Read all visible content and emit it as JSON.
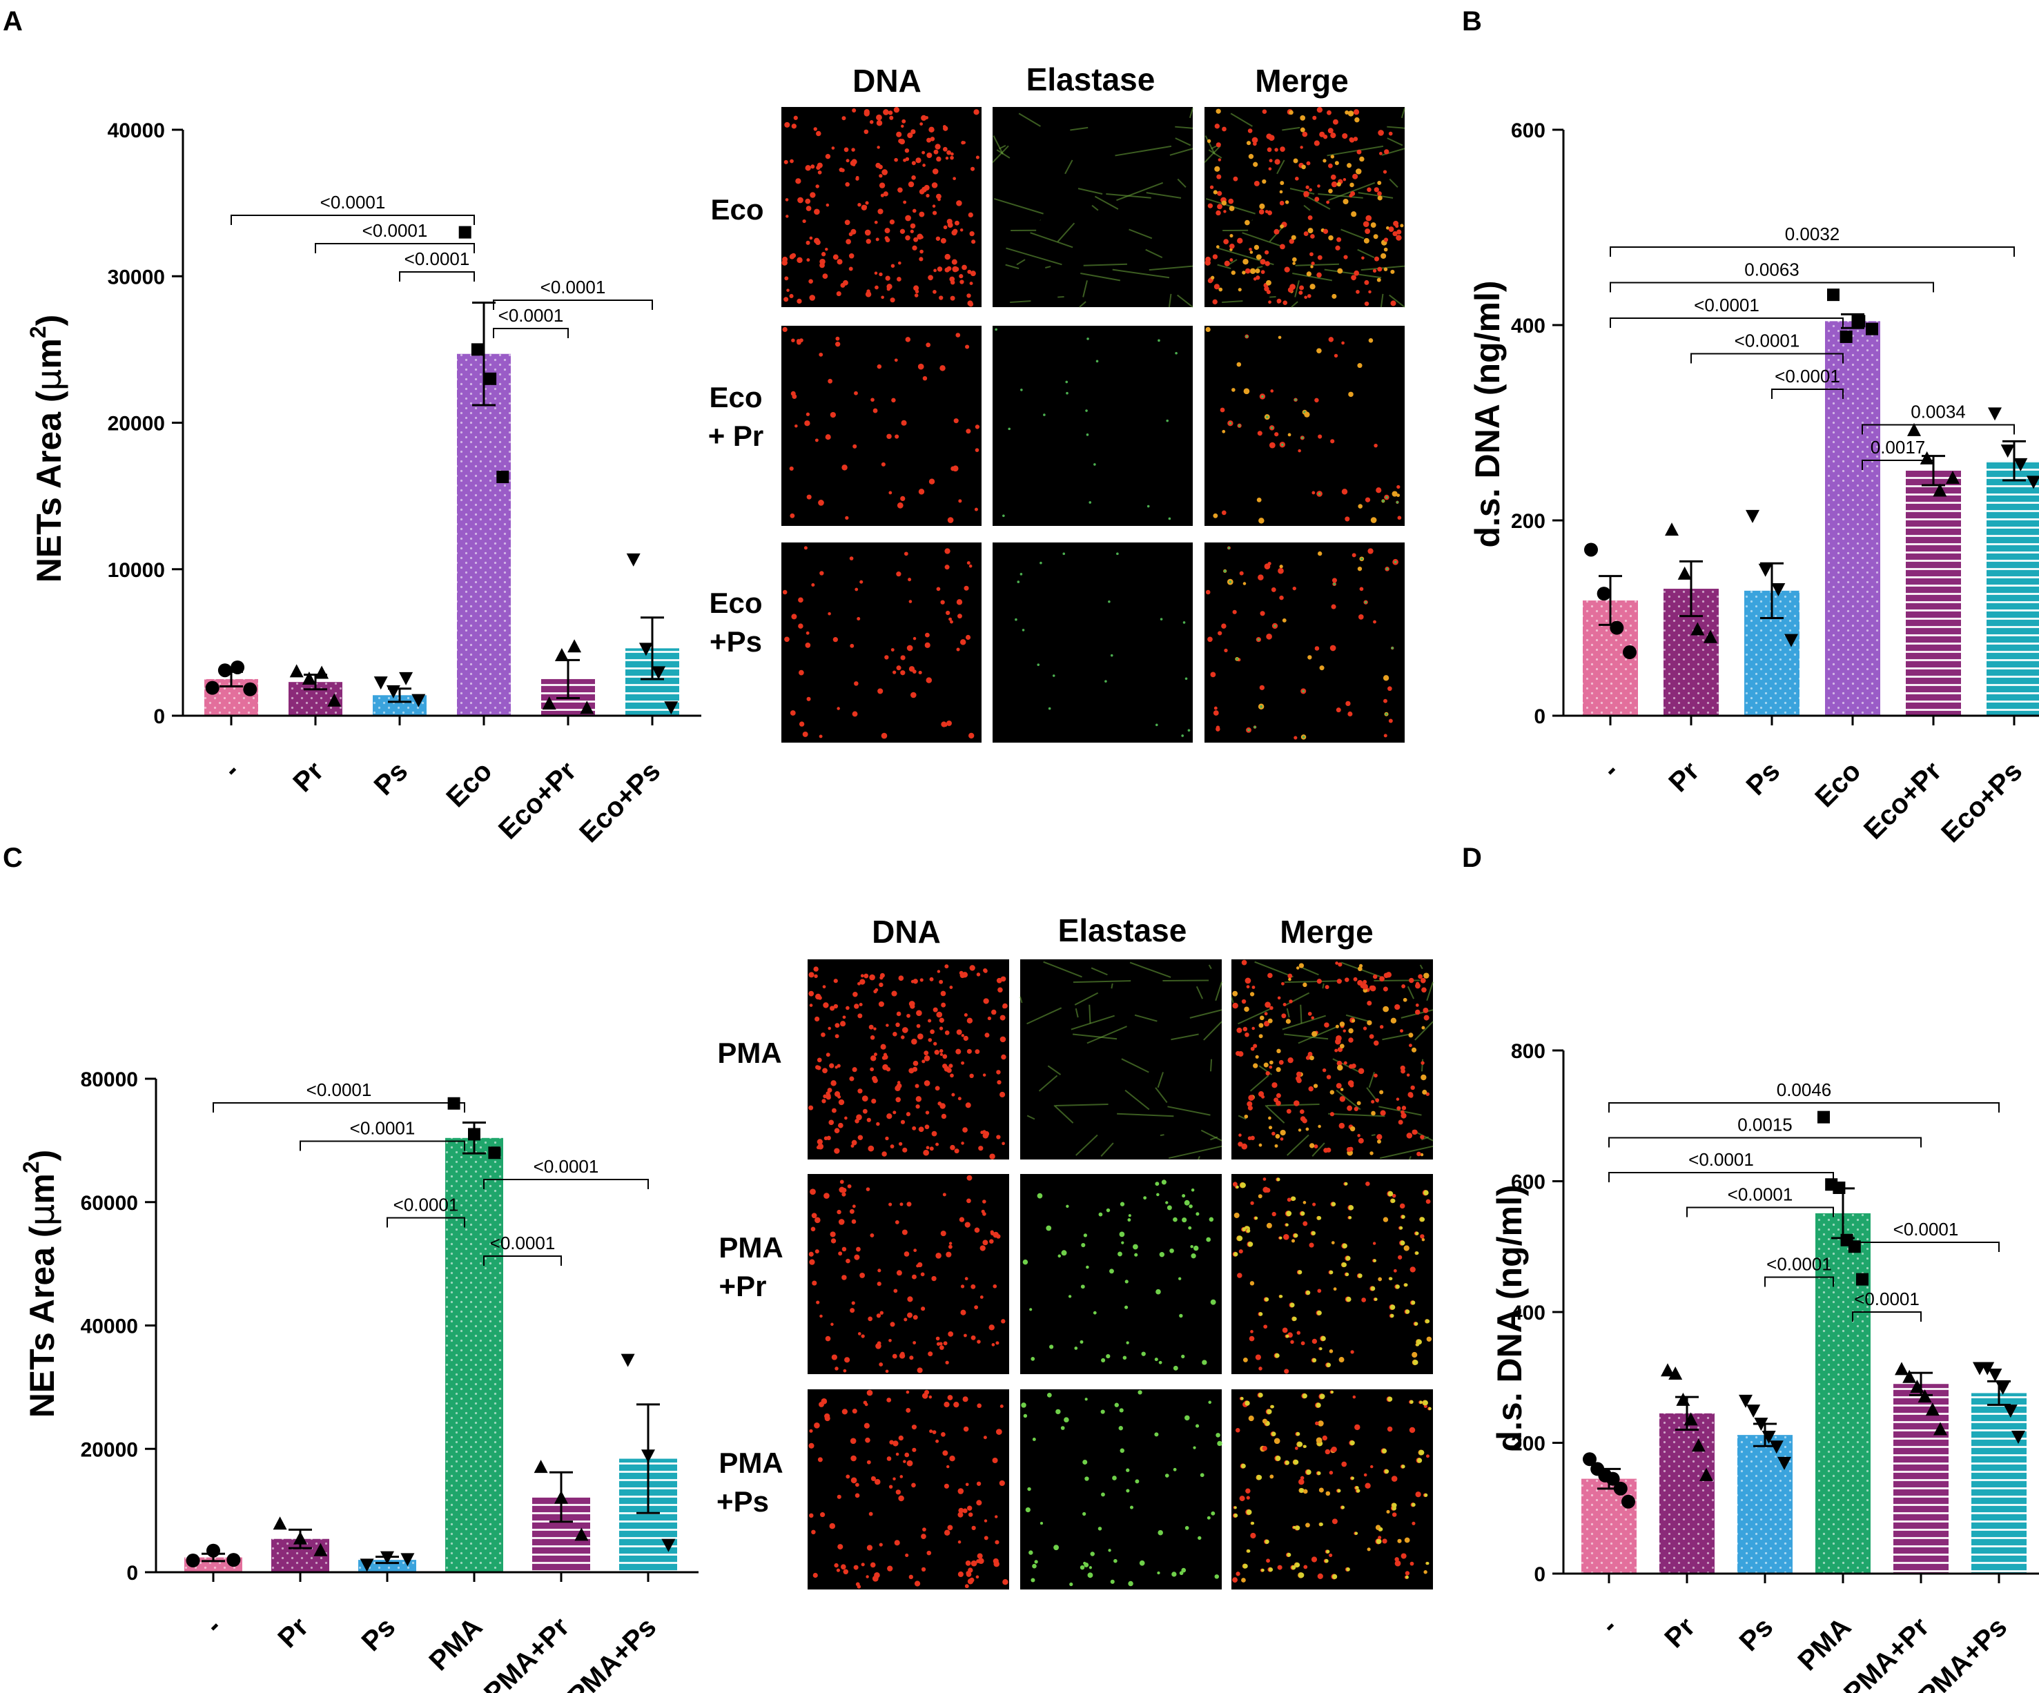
{
  "panels": {
    "A": "A",
    "B": "B",
    "C": "C",
    "D": "D"
  },
  "colors": {
    "pink": "#e36f9c",
    "plum": "#8b2a79",
    "blue": "#3aa3dd",
    "violet": "#9a5cc7",
    "green": "#1fa66b",
    "teal": "#1da9b9"
  },
  "chart_data": [
    {
      "id": "A",
      "type": "bar",
      "categories": [
        "-",
        "Pr",
        "Ps",
        "Eco",
        "Eco+Pr",
        "Eco+Ps"
      ],
      "values": [
        2500,
        2300,
        1400,
        24700,
        2500,
        4600
      ],
      "errors": [
        500,
        500,
        450,
        3500,
        1300,
        2100
      ],
      "points": [
        [
          1900,
          3100,
          3300,
          1800
        ],
        [
          3000,
          2500,
          2900,
          1000
        ],
        [
          2300,
          1700,
          2600,
          1100
        ],
        [
          33000,
          25000,
          23000,
          16300
        ],
        [
          800,
          4100,
          4700,
          500
        ],
        [
          10700,
          4600,
          3000,
          600
        ]
      ],
      "marker": [
        "circle",
        "triangle-up",
        "triangle-down",
        "square",
        "triangle-up",
        "triangle-down"
      ],
      "bar_colors": [
        "pink",
        "plum",
        "blue",
        "violet",
        "plum",
        "teal"
      ],
      "pattern": [
        "dots",
        "dots",
        "dots",
        "dots",
        "hlines",
        "hlines"
      ],
      "ylabel_pre": "NETs Area (",
      "ylabel_mu": "μ",
      "ylabel_unit": "m",
      "ylabel_sup": "2",
      "ylabel_post": ")",
      "ylim": [
        0,
        40000
      ],
      "yticks": [
        "0",
        "10000",
        "20000",
        "30000",
        "40000"
      ],
      "comparisons": [
        {
          "a": 3,
          "b": 4,
          "label": "<0.0001"
        },
        {
          "a": 3,
          "b": 5,
          "label": "<0.0001"
        },
        {
          "a": 2,
          "b": 3,
          "label": "<0.0001"
        },
        {
          "a": 1,
          "b": 3,
          "label": "<0.0001"
        },
        {
          "a": 0,
          "b": 3,
          "label": "<0.0001"
        }
      ]
    },
    {
      "id": "B",
      "type": "bar",
      "categories": [
        "-",
        "Pr",
        "Ps",
        "Eco",
        "Eco+Pr",
        "Eco+Ps"
      ],
      "values": [
        118,
        130,
        128,
        404,
        251,
        261
      ],
      "errors": [
        25,
        28,
        28,
        7,
        15,
        20
      ],
      "points": [
        [
          170,
          125,
          90,
          65
        ],
        [
          190,
          145,
          88,
          80
        ],
        [
          205,
          150,
          130,
          78
        ],
        [
          431,
          388,
          404,
          396
        ],
        [
          292,
          263,
          230,
          243
        ],
        [
          310,
          272,
          258,
          240
        ]
      ],
      "marker": [
        "circle",
        "triangle-up",
        "triangle-down",
        "square",
        "triangle-up",
        "triangle-down"
      ],
      "bar_colors": [
        "pink",
        "plum",
        "blue",
        "violet",
        "plum",
        "teal"
      ],
      "pattern": [
        "dots",
        "dots",
        "dots",
        "dots",
        "hlines",
        "hlines"
      ],
      "ylabel": "d.s. DNA (ng/ml)",
      "ylim": [
        0,
        600
      ],
      "yticks": [
        "0",
        "200",
        "400",
        "600"
      ],
      "comparisons": [
        {
          "a": 3,
          "b": 4,
          "label": "0.0017"
        },
        {
          "a": 3,
          "b": 5,
          "label": "0.0034"
        },
        {
          "a": 2,
          "b": 3,
          "label": "<0.0001"
        },
        {
          "a": 1,
          "b": 3,
          "label": "<0.0001"
        },
        {
          "a": 0,
          "b": 3,
          "label": "<0.0001"
        },
        {
          "a": 0,
          "b": 4,
          "label": "0.0063"
        },
        {
          "a": 0,
          "b": 5,
          "label": "0.0032"
        }
      ]
    },
    {
      "id": "C",
      "type": "bar",
      "categories": [
        "-",
        "Pr",
        "Ps",
        "PMA",
        "PMA+Pr",
        "PMA+Ps"
      ],
      "values": [
        2400,
        5400,
        2000,
        70400,
        12200,
        18400
      ],
      "errors": [
        600,
        1500,
        500,
        2500,
        4000,
        8800
      ],
      "points": [
        [
          1900,
          3500,
          2000
        ],
        [
          7800,
          5400,
          3500
        ],
        [
          1300,
          2500,
          2200
        ],
        [
          76000,
          71000,
          68000
        ],
        [
          17000,
          12000,
          6000
        ],
        [
          34500,
          19000,
          4500
        ]
      ],
      "marker": [
        "circle",
        "triangle-up",
        "triangle-down",
        "square",
        "triangle-up",
        "triangle-down"
      ],
      "bar_colors": [
        "pink",
        "plum",
        "blue",
        "green",
        "plum",
        "teal"
      ],
      "pattern": [
        "dots",
        "dots",
        "dots",
        "dots",
        "hlines",
        "hlines"
      ],
      "ylabel_pre": "NETs Area (",
      "ylabel_mu": "μ",
      "ylabel_unit": "m",
      "ylabel_sup": "2",
      "ylabel_post": ")",
      "ylim": [
        0,
        80000
      ],
      "yticks": [
        "0",
        "20000",
        "40000",
        "60000",
        "80000"
      ],
      "comparisons": [
        {
          "a": 3,
          "b": 4,
          "label": "<0.0001"
        },
        {
          "a": 2,
          "b": 3,
          "label": "<0.0001"
        },
        {
          "a": 3,
          "b": 5,
          "label": "<0.0001"
        },
        {
          "a": 1,
          "b": 3,
          "label": "<0.0001"
        },
        {
          "a": 0,
          "b": 3,
          "label": "<0.0001"
        }
      ]
    },
    {
      "id": "D",
      "type": "bar",
      "categories": [
        "-",
        "Pr",
        "Ps",
        "PMA",
        "PMA+Pr",
        "PMA+Ps"
      ],
      "values": [
        145,
        245,
        212,
        551,
        290,
        276
      ],
      "errors": [
        15,
        25,
        17,
        38,
        17,
        18
      ],
      "points": [
        [
          175,
          160,
          150,
          145,
          130,
          110
        ],
        [
          310,
          305,
          265,
          235,
          195,
          150
        ],
        [
          265,
          250,
          230,
          210,
          195,
          170
        ],
        [
          698,
          595,
          590,
          510,
          500,
          450
        ],
        [
          312,
          300,
          285,
          270,
          250,
          220
        ],
        [
          315,
          315,
          305,
          285,
          250,
          210
        ]
      ],
      "marker": [
        "circle",
        "triangle-up",
        "triangle-down",
        "square",
        "triangle-up",
        "triangle-down"
      ],
      "bar_colors": [
        "pink",
        "plum",
        "blue",
        "green",
        "plum",
        "teal"
      ],
      "pattern": [
        "dots",
        "dots",
        "dots",
        "dots",
        "hlines",
        "hlines"
      ],
      "ylabel": "d.s. DNA (ng/ml)",
      "ylim": [
        0,
        800
      ],
      "yticks": [
        "0",
        "200",
        "400",
        "600",
        "800"
      ],
      "comparisons": [
        {
          "a": 3,
          "b": 4,
          "label": "<0.0001"
        },
        {
          "a": 2,
          "b": 3,
          "label": "<0.0001"
        },
        {
          "a": 3,
          "b": 5,
          "label": "<0.0001"
        },
        {
          "a": 1,
          "b": 3,
          "label": "<0.0001"
        },
        {
          "a": 0,
          "b": 3,
          "label": "<0.0001"
        },
        {
          "a": 0,
          "b": 4,
          "label": "0.0015"
        },
        {
          "a": 0,
          "b": 5,
          "label": "0.0046"
        }
      ]
    }
  ],
  "micrographs": [
    {
      "columns": [
        "DNA",
        "Elastase",
        "Merge"
      ],
      "rows": [
        {
          "label_lines": [
            "Eco"
          ],
          "density": 1.0,
          "elastase": "fibrous"
        },
        {
          "label_lines": [
            "Eco",
            "+ Pr"
          ],
          "density": 0.25,
          "elastase": "sparse"
        },
        {
          "label_lines": [
            "Eco",
            "+Ps"
          ],
          "density": 0.3,
          "elastase": "sparse"
        }
      ]
    },
    {
      "columns": [
        "DNA",
        "Elastase",
        "Merge"
      ],
      "rows": [
        {
          "label_lines": [
            "PMA"
          ],
          "density": 1.0,
          "elastase": "fibrous"
        },
        {
          "label_lines": [
            "PMA",
            "+Pr"
          ],
          "density": 0.55,
          "elastase": "dots"
        },
        {
          "label_lines": [
            "PMA",
            "+Ps"
          ],
          "density": 0.6,
          "elastase": "dots"
        }
      ]
    }
  ]
}
